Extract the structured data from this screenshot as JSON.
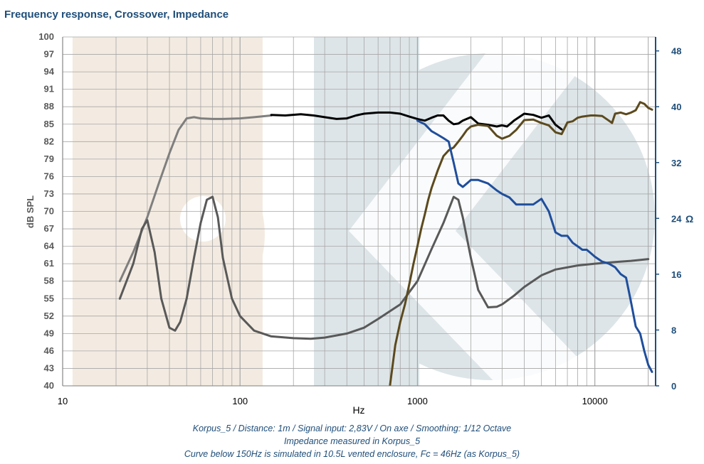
{
  "chart_title": "Frequency response, Crossover, Impedance",
  "captions": [
    "Korpus_5 / Distance: 1m / Signal input: 2,83V / On axe / Smoothing: 1/12 Octave",
    "Impedance measured in Korpus_5",
    "Curve below 150Hz is simulated in 10.5L vented enclosure, Fc = 46Hz (as Korpus_5)"
  ],
  "colors": {
    "fr_simulated": "#7f7f7f",
    "fr_measured": "#000000",
    "crossover_bandpass": "#595959",
    "crossover_highpass": "#5c4a1e",
    "impedance": "#1f4e9c",
    "grid": "#a6a6a6",
    "left_axis": "#595959",
    "right_axis": "#1f4e79"
  },
  "chart_data": {
    "type": "line",
    "title": "Frequency response, Crossover, Impedance",
    "xlabel": "Hz",
    "ylabel": "dB SPL",
    "y2label": "Ω",
    "xscale": "log",
    "xlim": [
      10,
      22000
    ],
    "ylim": [
      40,
      100
    ],
    "y2lim": [
      0,
      50
    ],
    "x_ticks": [
      "10",
      "100",
      "1000",
      "10000"
    ],
    "y_ticks": [
      "40",
      "43",
      "46",
      "49",
      "52",
      "55",
      "58",
      "61",
      "64",
      "67",
      "70",
      "73",
      "76",
      "79",
      "82",
      "85",
      "88",
      "91",
      "94",
      "97",
      "100"
    ],
    "y2_ticks": [
      "0",
      "8",
      "16",
      "24",
      "32",
      "40",
      "48"
    ],
    "grid": true,
    "series": [
      {
        "key": "fr_simulated",
        "axis": "left",
        "x": [
          21,
          25,
          30,
          35,
          40,
          45,
          50,
          55,
          60,
          70,
          80,
          100,
          120,
          150
        ],
        "y": [
          58,
          63,
          69,
          75,
          80,
          84,
          86,
          86.2,
          86,
          85.9,
          85.9,
          86,
          86.2,
          86.5
        ]
      },
      {
        "key": "fr_measured",
        "axis": "left",
        "x": [
          150,
          180,
          220,
          260,
          300,
          350,
          400,
          450,
          500,
          600,
          700,
          800,
          900,
          1000,
          1100,
          1200,
          1300,
          1400,
          1500,
          1600,
          1700,
          1800,
          2000,
          2200,
          2500,
          2800,
          3000,
          3200,
          3500,
          4000,
          4500,
          5000,
          5500,
          6000,
          6500
        ],
        "y": [
          86.6,
          86.5,
          86.7,
          86.5,
          86.2,
          85.9,
          86,
          86.5,
          86.8,
          87,
          87,
          86.8,
          86.3,
          85.9,
          85.6,
          86.1,
          86.5,
          86.5,
          85.6,
          85,
          85.1,
          85.6,
          86.2,
          85.1,
          84.9,
          84.6,
          84.8,
          84.6,
          85.6,
          86.8,
          86.6,
          86.1,
          86.5,
          84.9,
          84.1
        ]
      },
      {
        "key": "crossover_bandpass",
        "axis": "left",
        "x": [
          21,
          25,
          28,
          30,
          33,
          36,
          40,
          43,
          46,
          50,
          55,
          60,
          65,
          70,
          75,
          80,
          90,
          100,
          120,
          150,
          200,
          250,
          300,
          400,
          500,
          600,
          800,
          1000,
          1200,
          1400,
          1600,
          1700,
          1800,
          2000,
          2200,
          2500,
          2800,
          3000,
          3500,
          4000,
          5000,
          6000,
          8000,
          10000,
          13000,
          16000,
          20000
        ],
        "y": [
          55,
          61,
          67,
          68.5,
          63,
          55,
          50,
          49.5,
          51,
          55,
          62,
          68,
          72,
          72.5,
          69,
          62,
          55,
          52,
          49.5,
          48.5,
          48.2,
          48.1,
          48.3,
          49,
          50,
          51.5,
          54,
          58,
          63.5,
          68,
          72.5,
          72,
          69,
          62,
          56.5,
          53.5,
          53.6,
          54,
          55.5,
          57,
          59,
          60,
          60.7,
          61,
          61.3,
          61.5,
          61.8
        ]
      },
      {
        "key": "crossover_highpass",
        "axis": "left",
        "x": [
          700,
          750,
          800,
          850,
          900,
          950,
          1000,
          1050,
          1100,
          1150,
          1200,
          1300,
          1400,
          1500,
          1600,
          1700,
          1800,
          1900,
          2000,
          2200,
          2500,
          2800,
          3000,
          3300,
          3600,
          4000,
          4500,
          5000,
          5500,
          6000,
          6500,
          7000,
          7500,
          8000,
          8500,
          9000,
          9500,
          10000,
          11000,
          12000,
          12500,
          13000,
          14000,
          15000,
          16000,
          17000,
          18000,
          19000,
          20000,
          21000
        ],
        "y": [
          40,
          47,
          51,
          54,
          57.5,
          61,
          64,
          67,
          69.5,
          72,
          74,
          77,
          79.5,
          80.5,
          81,
          82,
          83,
          84,
          84.6,
          84.9,
          84.7,
          83,
          82.5,
          83,
          84,
          85.7,
          85.8,
          85.2,
          84.8,
          83.6,
          83.3,
          85.3,
          85.5,
          86.1,
          86.3,
          86.4,
          86.5,
          86.5,
          86.4,
          85.6,
          85.2,
          86.8,
          87,
          86.7,
          87,
          87.4,
          88.8,
          88.5,
          87.8,
          87.5
        ]
      },
      {
        "key": "impedance",
        "axis": "right",
        "x": [
          1000,
          1100,
          1200,
          1300,
          1400,
          1500,
          1600,
          1700,
          1800,
          1900,
          2000,
          2200,
          2500,
          2800,
          3000,
          3300,
          3600,
          4000,
          4500,
          5000,
          5500,
          6000,
          6500,
          7000,
          7500,
          8000,
          8500,
          9000,
          9500,
          10000,
          11000,
          12000,
          13000,
          14000,
          15000,
          16000,
          17000,
          18000,
          19000,
          20000,
          21000
        ],
        "y": [
          38,
          37.5,
          36.5,
          36,
          35.5,
          35,
          32,
          29,
          28.5,
          29,
          29.5,
          29.5,
          29,
          28,
          27.5,
          27,
          26,
          26,
          26,
          26.8,
          25,
          22,
          21.5,
          21.5,
          20.5,
          20,
          19.5,
          19.5,
          19,
          18.5,
          17.8,
          17.5,
          17,
          16,
          15.5,
          12,
          8.5,
          7.5,
          5,
          3,
          2
        ]
      }
    ]
  }
}
